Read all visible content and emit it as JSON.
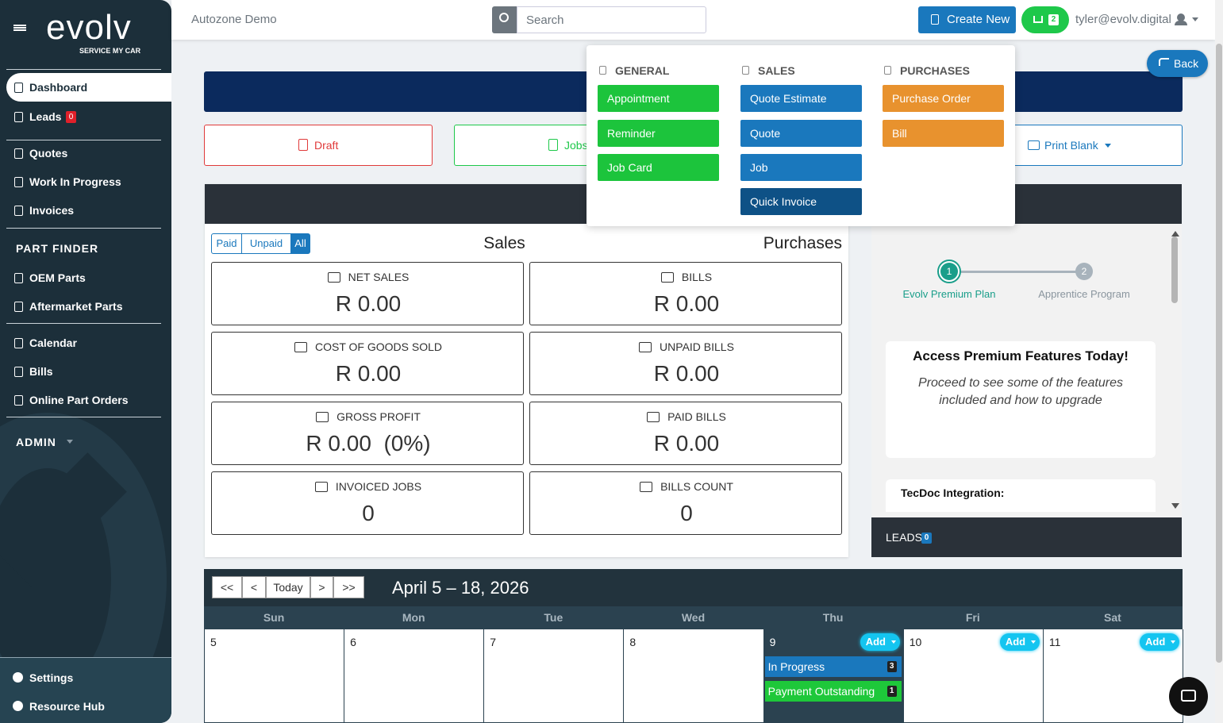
{
  "sidebar": {
    "brand": "evolv",
    "tagline": "SERVICE MY CAR",
    "main": [
      {
        "label": "Dashboard"
      },
      {
        "label": "Leads",
        "badge": "0"
      }
    ],
    "docs": [
      "Quotes",
      "Work In Progress",
      "Invoices"
    ],
    "part_finder": {
      "title": "PART FINDER",
      "items": [
        "OEM Parts",
        "Aftermarket Parts"
      ]
    },
    "tools": [
      "Calendar",
      "Bills",
      "Online Part Orders"
    ],
    "admin": "ADMIN",
    "footer": [
      "Settings",
      "Resource Hub"
    ]
  },
  "topbar": {
    "company": "Autozone Demo",
    "search_placeholder": "Search",
    "create_new": "Create New",
    "cart_count": "2",
    "user": "tyler@evolv.digital"
  },
  "dropdown": {
    "columns": [
      {
        "title": "GENERAL",
        "items": [
          "Appointment",
          "Reminder",
          "Job Card"
        ]
      },
      {
        "title": "SALES",
        "items": [
          "Quote Estimate",
          "Quote",
          "Job",
          "Quick Invoice"
        ]
      },
      {
        "title": "PURCHASES",
        "items": [
          "Purchase Order",
          "Bill"
        ]
      }
    ]
  },
  "back": "Back",
  "status_buttons": [
    "Draft",
    "Jobs In Progress"
  ],
  "print_blank": "Print Blank",
  "filters": [
    "Paid",
    "Unpaid",
    "All"
  ],
  "sales_title": "Sales",
  "purchases_title": "Purchases",
  "cards": [
    {
      "label": "NET SALES",
      "value": "R 0.00"
    },
    {
      "label": "BILLS",
      "value": "R 0.00"
    },
    {
      "label": "COST OF GOODS SOLD",
      "value": "R 0.00"
    },
    {
      "label": "UNPAID BILLS",
      "value": "R 0.00"
    },
    {
      "label": "GROSS PROFIT",
      "value": "R 0.00  (0%)"
    },
    {
      "label": "PAID BILLS",
      "value": "R 0.00"
    },
    {
      "label": "INVOICED JOBS",
      "value": "0"
    },
    {
      "label": "BILLS COUNT",
      "value": "0"
    }
  ],
  "steps": [
    {
      "number": "1",
      "label": "Evolv Premium Plan"
    },
    {
      "number": "2",
      "label": "Apprentice Program"
    }
  ],
  "promo": {
    "title": "Access Premium Features Today!",
    "text": "Proceed to see some of the features included and how to upgrade",
    "next": "TecDoc Integration:"
  },
  "leads": {
    "label": "LEADS",
    "count": "0"
  },
  "calendar": {
    "nav": [
      "<<",
      "<",
      "Today",
      ">",
      ">>"
    ],
    "range": "April 5 – 18, 2026",
    "days": [
      "Sun",
      "Mon",
      "Tue",
      "Wed",
      "Thu",
      "Fri",
      "Sat"
    ],
    "dates": [
      "5",
      "6",
      "7",
      "8",
      "9",
      "10",
      "11"
    ],
    "add": "Add",
    "events": [
      {
        "label": "In Progress",
        "count": "3"
      },
      {
        "label": "Payment Outstanding",
        "count": "1"
      }
    ]
  }
}
